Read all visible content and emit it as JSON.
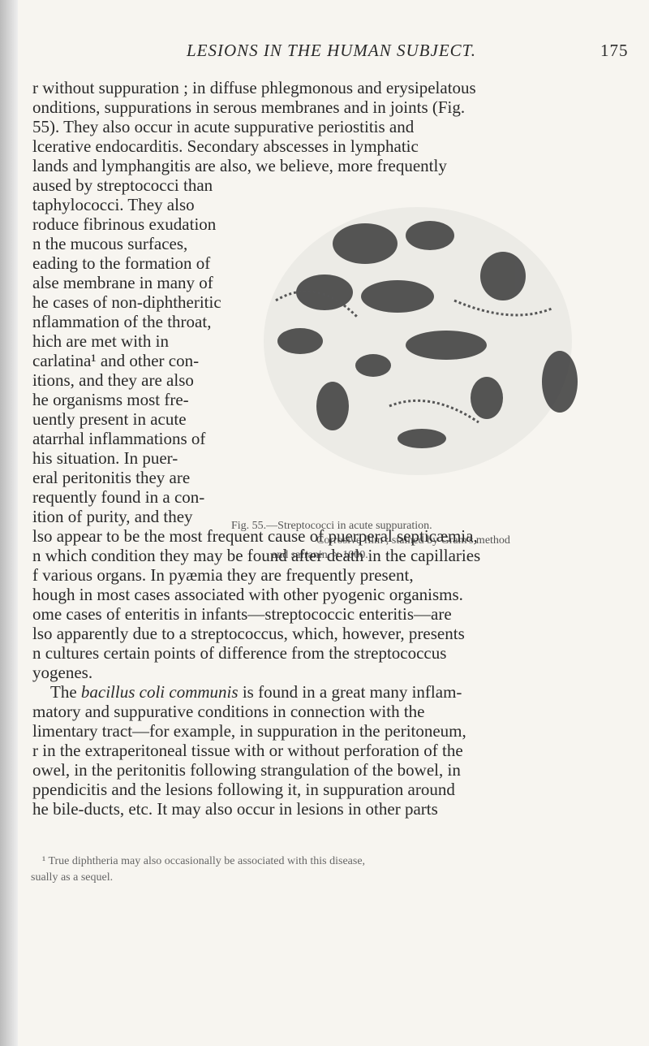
{
  "header": {
    "title": "LESIONS IN THE HUMAN SUBJECT.",
    "page_number": "175"
  },
  "body": {
    "block1": [
      "r without suppuration ; in diffuse phlegmonous and erysipelatous",
      "onditions, suppurations in serous membranes and in joints (Fig.",
      "55). They also occur in acute suppurative periostitis and",
      "lcerative endocarditis. Secondary abscesses in lymphatic",
      "lands and lymphangitis are also, we believe, more frequently"
    ],
    "block2": [
      "aused by streptococci than",
      "taphylococci. They also",
      "roduce fibrinous exudation",
      "n the mucous surfaces,",
      "eading to the formation of",
      "alse membrane in many of",
      "he cases of non-diphtheritic",
      "nflammation of the throat,",
      "hich are met with in",
      "carlatina¹ and other con-",
      "itions, and they are also",
      "he organisms most fre-",
      "uently present in acute",
      "atarrhal inflammations of",
      "his situation. In puer-",
      "eral peritonitis they are",
      "requently found in a con-",
      "ition of purity, and they"
    ],
    "block3": [
      "lso appear to be the most frequent cause of puerperal septicæmia,",
      "n which condition they may be found after death in the capillaries",
      "f various organs. In pyæmia they are frequently present,",
      "hough in most cases associated with other pyogenic organisms.",
      "ome cases of enteritis in infants—streptococcic enteritis—are",
      "lso apparently due to a streptococcus, which, however, presents",
      "n cultures certain points of difference from the streptococcus",
      "yogenes."
    ],
    "paragraph2_first": {
      "start": "The ",
      "italic": "bacillus coli communis",
      "end": " is found in a great many inflam-"
    },
    "block4": [
      "matory and suppurative conditions in connection with the",
      "limentary tract—for example, in suppuration in the peritoneum,",
      "r in the extraperitoneal tissue with or without perforation of the",
      "owel, in the peritonitis following strangulation of the bowel, in",
      "ppendicitis and the lesions following it, in suppuration around",
      "he bile-ducts, etc. It may also occur in lesions in other parts"
    ]
  },
  "figure": {
    "caption": [
      "Fig. 55.—Streptococci in acute suppuration.",
      "Corrosive film ; stained by Gram's method",
      "and safranin. × 1000."
    ]
  },
  "footnote": [
    "¹ True diphtheria may also occasionally be associated with this disease,",
    "sually as a sequel."
  ]
}
